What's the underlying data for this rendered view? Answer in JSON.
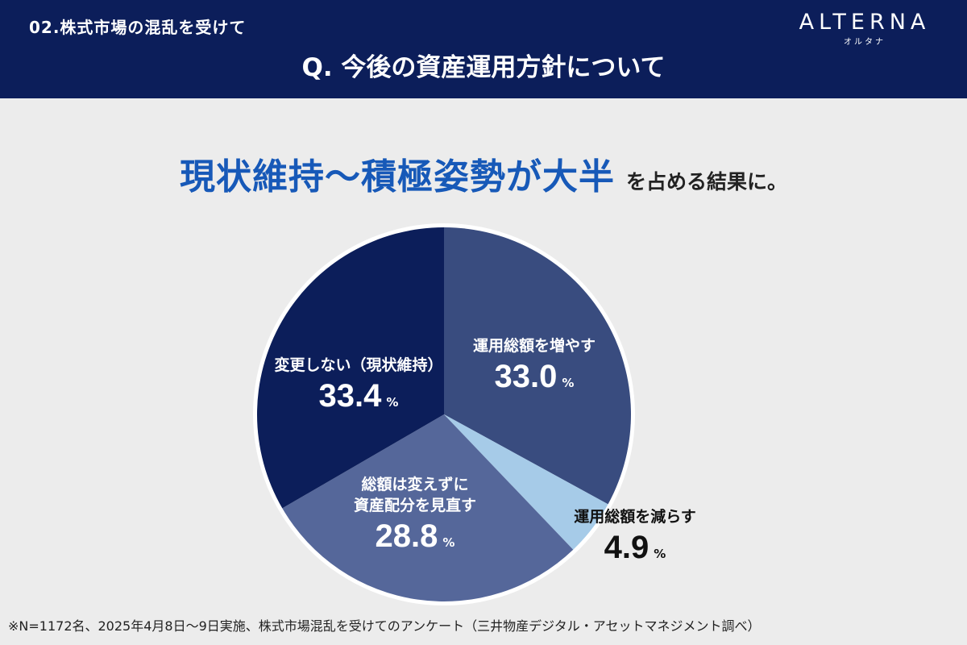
{
  "header": {
    "section_label": "02.株式市場の混乱を受けて",
    "question": "Q. 今後の資産運用方針について",
    "logo": "ALTERNA",
    "logo_sub": "オルタナ",
    "background_color": "#0c1e5a"
  },
  "headline": {
    "emphasis": "現状維持〜積極姿勢が大半",
    "rest": "を占める結果に。",
    "emphasis_color": "#1759b8"
  },
  "chart_data": {
    "type": "pie",
    "unit": "%",
    "start": "12 o'clock, clockwise",
    "slices": [
      {
        "label": "運用総額を増やす",
        "label_lines": [
          "運用総額を増やす"
        ],
        "value": 33.0,
        "value_text": "33.0",
        "color": "#394c7f"
      },
      {
        "label": "運用総額を減らす",
        "label_lines": [
          "運用総額を減らす"
        ],
        "value": 4.9,
        "value_text": "4.9",
        "color": "#a6cbe8"
      },
      {
        "label": "総額は変えずに資産配分を見直す",
        "label_lines": [
          "総額は変えずに",
          "資産配分を見直す"
        ],
        "value": 28.8,
        "value_text": "28.8",
        "color": "#55679a"
      },
      {
        "label": "変更しない（現状維持）",
        "label_lines": [
          "変更しない（現状維持）"
        ],
        "value": 33.4,
        "value_text": "33.4",
        "color": "#0c1e5a"
      }
    ]
  },
  "footnote": "※N=1172名、2025年4月8日〜9日実施、株式市場混乱を受けてのアンケート（三井物産デジタル・アセットマネジメント調べ）"
}
